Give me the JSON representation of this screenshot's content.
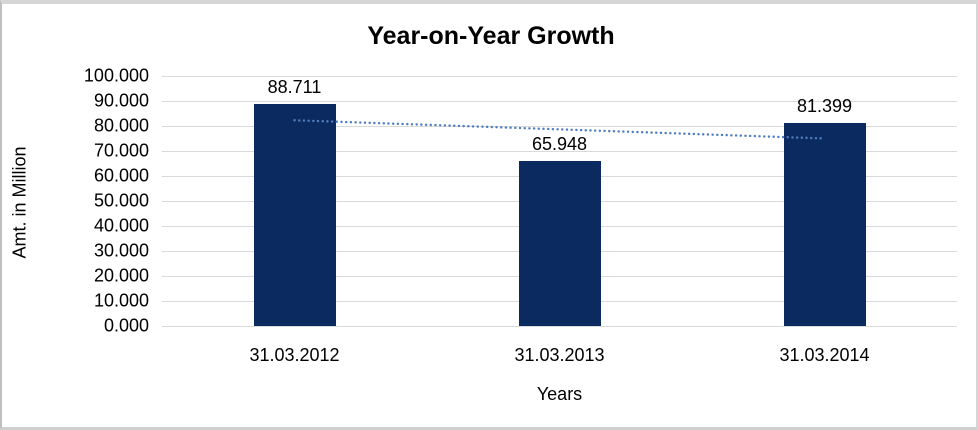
{
  "chart_data": {
    "type": "bar",
    "title": "Year-on-Year Growth",
    "xlabel": "Years",
    "ylabel": "Amt. in Million",
    "categories": [
      "31.03.2012",
      "31.03.2013",
      "31.03.2014"
    ],
    "values": [
      88.711,
      65.948,
      81.399
    ],
    "data_labels": [
      "88.711",
      "65.948",
      "81.399"
    ],
    "ylim": [
      0,
      100
    ],
    "ytick_step": 10,
    "ytick_labels": [
      "0.000",
      "10.000",
      "20.000",
      "30.000",
      "40.000",
      "50.000",
      "60.000",
      "70.000",
      "80.000",
      "90.000",
      "100.000"
    ],
    "grid": true,
    "legend": "none",
    "bar_color": "#0b2a5f",
    "gridline_color": "#d9d9d9",
    "trendline": {
      "type": "linear",
      "style": "dotted",
      "color": "#4f7dc0",
      "start_value": 82.3,
      "end_value": 75.0
    }
  }
}
